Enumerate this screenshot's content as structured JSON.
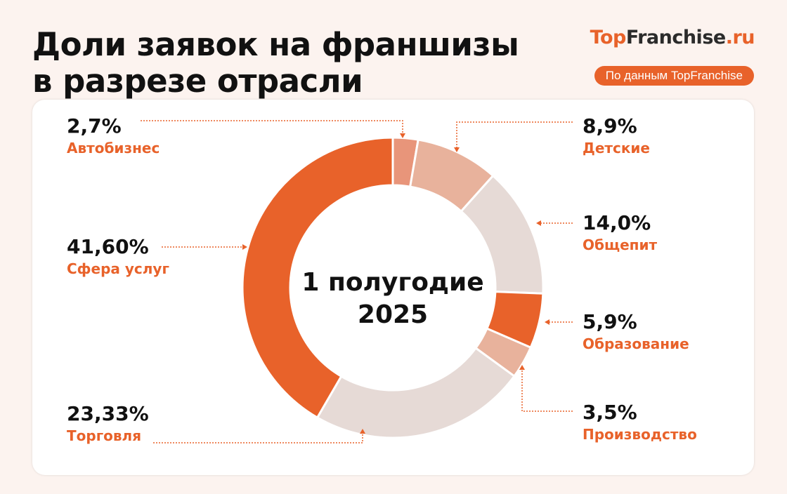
{
  "header": {
    "title_line1": "Доли заявок на франшизы",
    "title_line2": "в разрезе отрасли",
    "logo": {
      "part1": "Top",
      "part2": "Franchise",
      "part3": ".ru"
    },
    "badge": "По данным TopFranchise"
  },
  "center": {
    "line1": "1 полугодие",
    "line2": "2025"
  },
  "labels": {
    "avto": {
      "pct": "2,7%",
      "name": "Автобизнес"
    },
    "detskie": {
      "pct": "8,9%",
      "name": "Детские"
    },
    "obshchepit": {
      "pct": "14,0%",
      "name": "Общепит"
    },
    "obrazovanie": {
      "pct": "5,9%",
      "name": "Образование"
    },
    "proizvodstvo": {
      "pct": "3,5%",
      "name": "Производство"
    },
    "torgovlya": {
      "pct": "23,33%",
      "name": "Торговля"
    },
    "uslugi": {
      "pct": "41,60%",
      "name": "Сфера услуг"
    }
  },
  "colors": {
    "accent": "#e8622a",
    "avto": "#e8957a",
    "detskie": "#e8b29c",
    "obshchepit": "#e6dad6",
    "obrazovanie": "#e8622a",
    "proizvodstvo": "#e8b29c",
    "torgovlya": "#e6dad6",
    "uslugi": "#e8622a"
  },
  "chart_data": {
    "type": "pie",
    "variant": "donut",
    "title": "Доли заявок на франшизы в разрезе отрасли",
    "subtitle": "1 полугодие 2025",
    "source": "По данным TopFranchise",
    "categories": [
      "Автобизнес",
      "Детские",
      "Общепит",
      "Образование",
      "Производство",
      "Торговля",
      "Сфера услуг"
    ],
    "values": [
      2.7,
      8.9,
      14.0,
      5.9,
      3.5,
      23.33,
      41.6
    ],
    "unit": "%"
  }
}
